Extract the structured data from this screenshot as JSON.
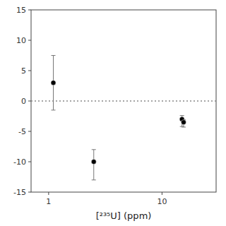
{
  "chart_data": {
    "type": "scatter",
    "x_label": "[²³⁵U] (ppm)",
    "log": "x",
    "grid": false,
    "xlim": [
      0.7,
      30
    ],
    "xticks": [
      1,
      10
    ],
    "ylim": [
      -15,
      15
    ],
    "yticks": [
      -15,
      -10,
      -5,
      0,
      5,
      10,
      15
    ],
    "color": "#000000",
    "marker": "circle",
    "hline": {
      "value": 0,
      "line_style": "dotted"
    },
    "series": [
      {
        "x": [
          1.1,
          2.5,
          15.0
        ],
        "values": [
          3.0,
          -10.0,
          -3.0
        ],
        "error_up": [
          4.5,
          2.0,
          0.6
        ],
        "error_down": [
          4.5,
          3.0,
          1.2
        ]
      },
      {
        "x": [
          15.5
        ],
        "values": [
          -3.5
        ],
        "error_up": [
          0.4
        ],
        "error_down": [
          0.8
        ]
      }
    ]
  }
}
